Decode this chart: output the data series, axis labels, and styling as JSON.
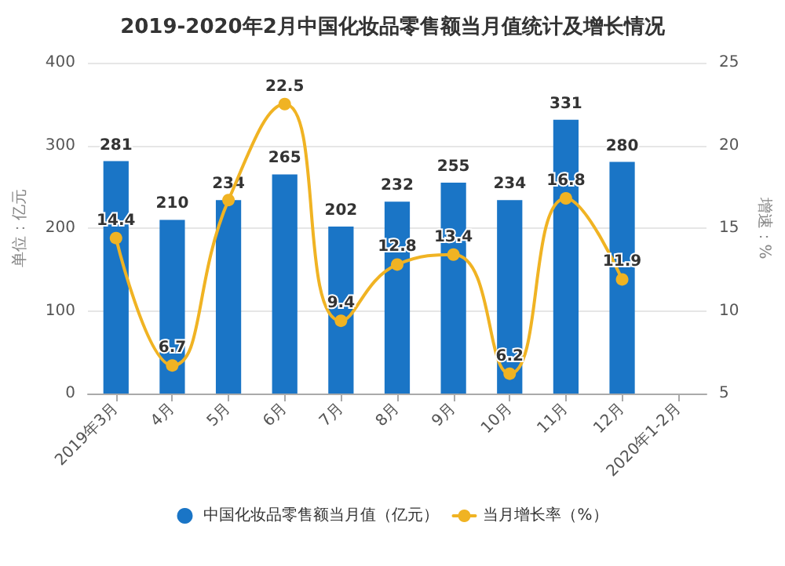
{
  "chart_data": {
    "type": "bar",
    "title": "2019-2020年2月中国化妆品零售额当月值统计及增长情况",
    "categories": [
      "2019年3月",
      "4月",
      "5月",
      "6月",
      "7月",
      "8月",
      "9月",
      "10月",
      "11月",
      "12月",
      "2020年1-2月"
    ],
    "series": [
      {
        "name": "中国化妆品零售额当月值（亿元）",
        "color": "#1a75c6",
        "values": [
          281,
          210,
          234,
          265,
          202,
          232,
          255,
          234,
          331,
          280,
          null
        ],
        "value_labels": [
          "281",
          "210",
          "234",
          "265",
          "202",
          "232",
          "255",
          "234",
          "331",
          "280",
          null
        ]
      },
      {
        "name": "当月增长率（%）",
        "type": "line",
        "axis": "y2",
        "color": "#f0b323",
        "values": [
          14.4,
          6.7,
          16.7,
          22.5,
          9.4,
          12.8,
          13.4,
          6.2,
          16.8,
          11.9,
          null
        ],
        "value_labels": [
          "14.4",
          "6.7",
          null,
          "22.5",
          "9.4",
          "12.8",
          "13.4",
          "6.2",
          "16.8",
          "11.9",
          null
        ]
      }
    ],
    "ylabel": "单位：亿元",
    "y2label": "增速：%",
    "ylim": [
      0,
      400
    ],
    "yticks": [
      0,
      100,
      200,
      300,
      400
    ],
    "y2lim": [
      5,
      25
    ],
    "y2ticks": [
      5,
      10,
      15,
      20,
      25
    ],
    "grid": "y",
    "legend": "bottom",
    "marker": "circle",
    "line_style": "solid"
  }
}
